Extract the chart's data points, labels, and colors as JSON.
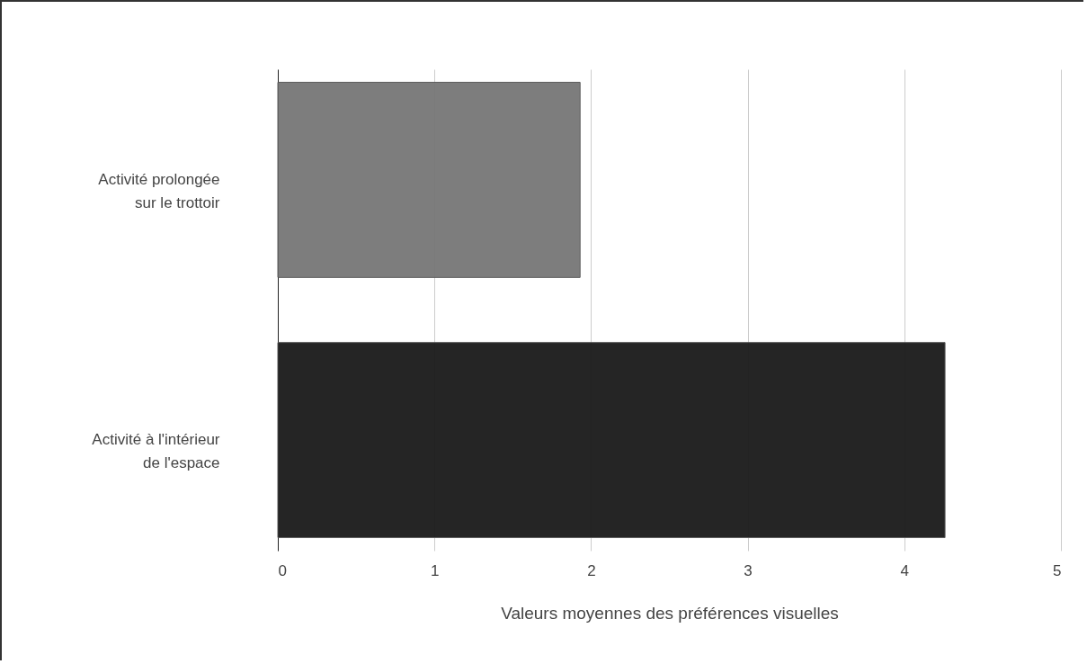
{
  "chart_data": {
    "type": "bar",
    "orientation": "horizontal",
    "categories": [
      "Activité prolongée sur le trottoir",
      "Activité à l'intérieur de l'espace"
    ],
    "values": [
      1.93,
      4.26
    ],
    "colors": [
      "#777777",
      "#1a1a1a"
    ],
    "xlabel": "Valeurs moyennes des préférences visuelles",
    "xlim": [
      0,
      5
    ],
    "xticks": [
      0,
      1,
      2,
      3,
      4,
      5
    ],
    "grid": "x"
  }
}
